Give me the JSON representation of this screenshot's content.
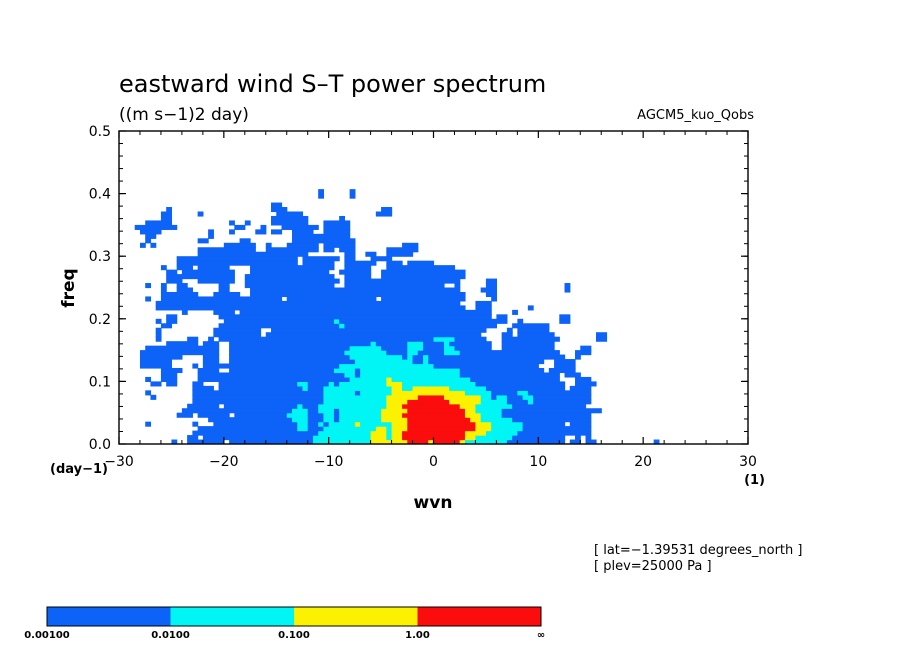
{
  "chart_data": {
    "type": "heatmap",
    "title": "eastward wind S–T power spectrum",
    "subtitle": "((m s−1)2 day)",
    "annotation_right": "AGCM5_kuo_Qobs",
    "xlabel": "wvn",
    "ylabel": "freq",
    "x_units": "(1)",
    "y_units": "(day−1)",
    "xlim": [
      -30,
      30
    ],
    "ylim": [
      0,
      0.5
    ],
    "x_ticks": [
      {
        "value": -30,
        "label": "−30"
      },
      {
        "value": -20,
        "label": "−20"
      },
      {
        "value": -10,
        "label": "−10"
      },
      {
        "value": 0,
        "label": "0"
      },
      {
        "value": 10,
        "label": "10"
      },
      {
        "value": 20,
        "label": "20"
      },
      {
        "value": 30,
        "label": "30"
      }
    ],
    "y_ticks": [
      {
        "value": 0.0,
        "label": "0.0"
      },
      {
        "value": 0.1,
        "label": "0.1"
      },
      {
        "value": 0.2,
        "label": "0.2"
      },
      {
        "value": 0.3,
        "label": "0.3"
      },
      {
        "value": 0.4,
        "label": "0.4"
      },
      {
        "value": 0.5,
        "label": "0.5"
      }
    ],
    "info_lines": [
      "[ lat=−1.39531 degrees_north ]",
      "[ plev=25000 Pa ]"
    ],
    "colorbar": {
      "bins": [
        {
          "from": "0.00100",
          "to": "0.0100",
          "color": "#0d63f7"
        },
        {
          "from": "0.0100",
          "to": "0.100",
          "color": "#00f5f5"
        },
        {
          "from": "0.100",
          "to": "1.00",
          "color": "#fcf200"
        },
        {
          "from": "1.00",
          "to": "∞",
          "color": "#fb0d0d"
        }
      ],
      "labels": [
        "0.00100",
        "0.0100",
        "0.100",
        "1.00",
        "∞"
      ]
    },
    "regions": [
      {
        "level": 1,
        "x_range": [
          -30,
          25
        ],
        "y_range": [
          0.0,
          0.25
        ],
        "note": "broad blue field, densest near low frequency"
      },
      {
        "level": 1,
        "x_range": [
          -28,
          12
        ],
        "y_range": [
          0.25,
          0.5
        ],
        "note": "scattered blue patches at higher frequency, western wavenumbers"
      },
      {
        "level": 2,
        "x_range": [
          -10,
          10
        ],
        "y_range": [
          0.0,
          0.2
        ],
        "note": "cyan core centered near wvn 0, low frequency"
      },
      {
        "level": 3,
        "x_range": [
          -3,
          5
        ],
        "y_range": [
          0.01,
          0.07
        ],
        "note": "yellow maximum near wvn 0 to 2, freq about 0.03 to 0.06"
      },
      {
        "level": 4,
        "x_range": [
          0.5,
          1.5
        ],
        "y_range": [
          0.035,
          0.045
        ],
        "note": "small red peak"
      }
    ]
  }
}
